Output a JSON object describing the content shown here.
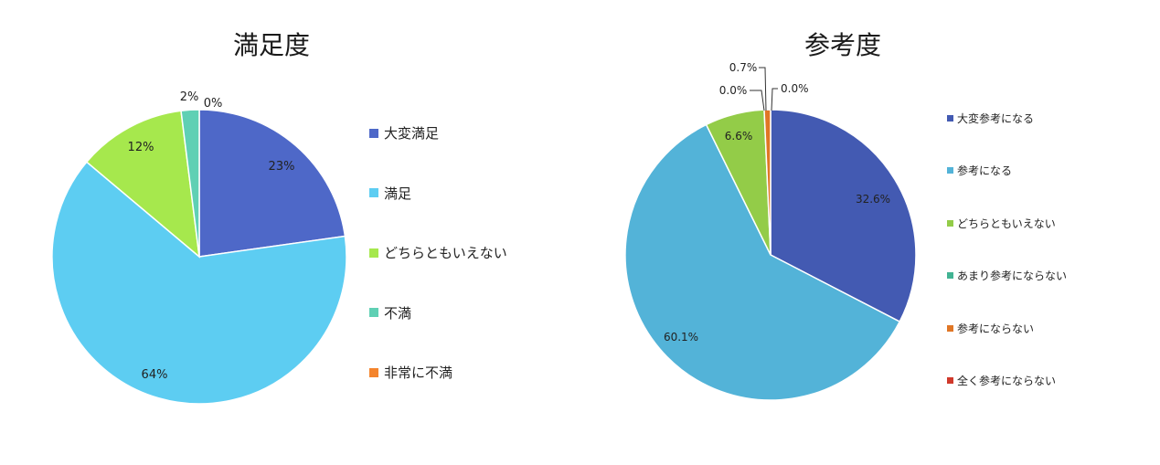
{
  "chart_data": [
    {
      "type": "pie",
      "title": "満足度",
      "categories": [
        "大変満足",
        "満足",
        "どちらともいえない",
        "不満",
        "非常に不満"
      ],
      "values": [
        23,
        64,
        12,
        2,
        0
      ],
      "data_labels": [
        "23%",
        "64%",
        "12%",
        "2%",
        "0%"
      ],
      "colors": [
        "#4e68c8",
        "#5dcdf2",
        "#a6e84d",
        "#5fd0b4",
        "#f4842c"
      ],
      "legend_position": "right"
    },
    {
      "type": "pie",
      "title": "参考度",
      "categories": [
        "大変参考になる",
        "参考になる",
        "どちらともいえない",
        "あまり参考にならない",
        "参考にならない",
        "全く参考にならない"
      ],
      "values": [
        32.6,
        60.1,
        6.6,
        0.0,
        0.7,
        0.0
      ],
      "data_labels": [
        "32.6%",
        "60.1%",
        "6.6%",
        "0.0%",
        "0.7%",
        "0.0%"
      ],
      "colors": [
        "#435ab2",
        "#53b3d8",
        "#93cc48",
        "#42b393",
        "#e07625",
        "#d0392b"
      ],
      "legend_position": "right"
    }
  ]
}
